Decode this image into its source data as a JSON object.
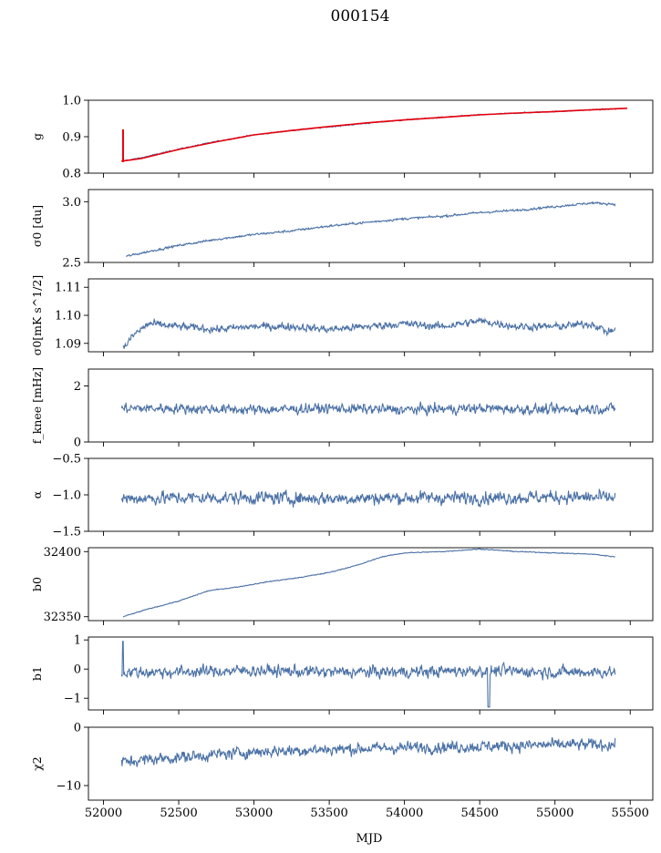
{
  "title": "000154",
  "xlabel": "MJD",
  "xlim": [
    51900,
    55650
  ],
  "xticks": [
    52000,
    52500,
    53000,
    53500,
    54000,
    54500,
    55000,
    55500
  ],
  "colors": {
    "series": "#4c72a6",
    "fit": "#e8000b",
    "axis": "#000000"
  },
  "chart_data": [
    {
      "type": "line",
      "id": "g",
      "ylabel": "g",
      "ylim": [
        0.8,
        1.0
      ],
      "yticks": [
        0.8,
        0.9,
        1.0
      ],
      "ytick_labels": [
        "0.8",
        "0.9",
        "1.0"
      ],
      "series": [
        {
          "x": [
            52120,
            52250,
            52500,
            52750,
            53000,
            53250,
            53500,
            53750,
            54000,
            54250,
            54500,
            54750,
            55000,
            55250,
            55450
          ],
          "y": [
            0.833,
            0.842,
            0.866,
            0.887,
            0.905,
            0.917,
            0.927,
            0.937,
            0.946,
            0.953,
            0.96,
            0.965,
            0.969,
            0.974,
            0.977
          ]
        }
      ],
      "fit": {
        "x": [
          52120,
          52250,
          52500,
          52750,
          53000,
          53250,
          53500,
          53750,
          54000,
          54250,
          54500,
          54750,
          55000,
          55250,
          55480
        ],
        "y": [
          0.833,
          0.84,
          0.865,
          0.886,
          0.905,
          0.917,
          0.928,
          0.938,
          0.946,
          0.953,
          0.96,
          0.965,
          0.969,
          0.974,
          0.978
        ],
        "spike": {
          "x": 52130,
          "y_top": 0.92,
          "y_bottom": 0.83
        }
      }
    },
    {
      "type": "line",
      "id": "sigma0_du",
      "ylabel": "σ0 [du]",
      "ylim": [
        2.5,
        3.1
      ],
      "yticks": [
        2.5,
        3.0
      ],
      "ytick_labels": [
        "2.5",
        "3.0"
      ],
      "series": [
        {
          "x": [
            52150,
            52300,
            52500,
            52750,
            53000,
            53250,
            53500,
            53750,
            54000,
            54250,
            54500,
            54750,
            55000,
            55250,
            55400
          ],
          "y": [
            2.55,
            2.59,
            2.64,
            2.69,
            2.73,
            2.76,
            2.8,
            2.83,
            2.86,
            2.88,
            2.91,
            2.93,
            2.96,
            2.99,
            2.98
          ]
        }
      ]
    },
    {
      "type": "line",
      "id": "sigma0_mk",
      "ylabel": "σ0[mK s^1/2]",
      "ylim": [
        1.087,
        1.113
      ],
      "yticks": [
        1.09,
        1.1,
        1.11
      ],
      "ytick_labels": [
        "1.09",
        "1.10",
        "1.11"
      ],
      "series": [
        {
          "x": [
            52130,
            52200,
            52300,
            52500,
            52750,
            53000,
            53250,
            53500,
            53750,
            54000,
            54250,
            54500,
            54750,
            55000,
            55250,
            55350,
            55400
          ],
          "y": [
            1.088,
            1.093,
            1.097,
            1.096,
            1.095,
            1.096,
            1.096,
            1.095,
            1.096,
            1.097,
            1.096,
            1.098,
            1.096,
            1.096,
            1.097,
            1.094,
            1.095
          ]
        }
      ]
    },
    {
      "type": "line",
      "id": "fknee",
      "ylabel": "f_knee [mHz]",
      "ylim": [
        0,
        2.6
      ],
      "yticks": [
        0,
        2
      ],
      "ytick_labels": [
        "0",
        "2"
      ],
      "series": [
        {
          "x": [
            52120,
            52500,
            53000,
            53500,
            54000,
            54500,
            55000,
            55400
          ],
          "y": [
            1.2,
            1.2,
            1.15,
            1.2,
            1.15,
            1.2,
            1.15,
            1.2
          ]
        }
      ]
    },
    {
      "type": "line",
      "id": "alpha",
      "ylabel": "α",
      "ylim": [
        -1.5,
        -0.5
      ],
      "yticks": [
        -1.5,
        -1.0,
        -0.5
      ],
      "ytick_labels": [
        "−1.5",
        "−1.0",
        "−0.5"
      ],
      "series": [
        {
          "x": [
            52120,
            52500,
            53000,
            53500,
            54000,
            54500,
            55000,
            55400
          ],
          "y": [
            -1.05,
            -1.04,
            -1.04,
            -1.05,
            -1.04,
            -1.04,
            -1.03,
            -1.04
          ]
        }
      ]
    },
    {
      "type": "line",
      "id": "b0",
      "ylabel": "b0",
      "ylim": [
        32347,
        32403
      ],
      "yticks": [
        32350,
        32400
      ],
      "ytick_labels": [
        "32350",
        "32400"
      ],
      "series": [
        {
          "x": [
            52130,
            52300,
            52500,
            52700,
            52900,
            53100,
            53300,
            53500,
            53700,
            53850,
            54000,
            54250,
            54500,
            54750,
            55000,
            55250,
            55400
          ],
          "y": [
            32350,
            32356,
            32362,
            32370,
            32373,
            32377,
            32380,
            32384,
            32390,
            32396,
            32399,
            32400,
            32402,
            32400,
            32399,
            32398,
            32396
          ]
        }
      ]
    },
    {
      "type": "line",
      "id": "b1",
      "ylabel": "b1",
      "ylim": [
        -1.4,
        1.1
      ],
      "yticks": [
        -1,
        0,
        1
      ],
      "ytick_labels": [
        "−1",
        "0",
        "1"
      ],
      "series": [
        {
          "x": [
            52120,
            52500,
            53000,
            53500,
            54000,
            54500,
            55000,
            55400
          ],
          "y": [
            -0.1,
            -0.1,
            -0.05,
            -0.1,
            -0.1,
            -0.05,
            -0.1,
            -0.1
          ]
        }
      ]
    },
    {
      "type": "line",
      "id": "chi2",
      "ylabel": "χ2",
      "ylim": [
        -12.5,
        0
      ],
      "yticks": [
        -10,
        0
      ],
      "ytick_labels": [
        "−10",
        "0"
      ],
      "series": [
        {
          "x": [
            52120,
            52300,
            52600,
            53000,
            53500,
            54000,
            54500,
            55000,
            55400
          ],
          "y": [
            -6.0,
            -5.5,
            -5.0,
            -4.2,
            -3.8,
            -3.5,
            -3.3,
            -3.0,
            -3.0
          ]
        }
      ]
    }
  ]
}
